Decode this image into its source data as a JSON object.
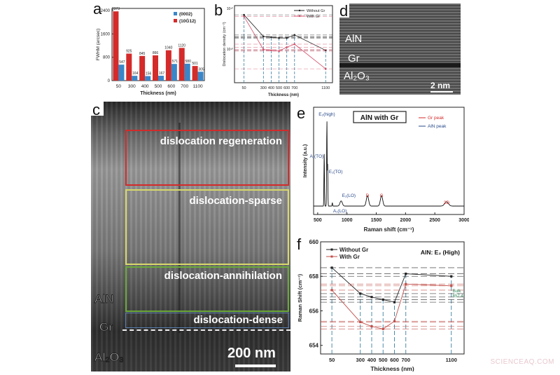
{
  "panels": {
    "a": {
      "label": "a"
    },
    "b": {
      "label": "b"
    },
    "c": {
      "label": "c",
      "regions": [
        {
          "label": "dislocation regeneration",
          "color": "#d42a2a"
        },
        {
          "label": "dislocation-sparse",
          "color": "#d8d86a"
        },
        {
          "label": "dislocation-annihilation",
          "color": "#6aa83a"
        },
        {
          "label": "dislocation-dense",
          "color": "#5a7fb0"
        }
      ],
      "layer_labels": {
        "top": "AlN",
        "middle": "Gr",
        "bottom": "Al₂O₃"
      },
      "scale_bar": "200 nm"
    },
    "d": {
      "label": "d",
      "layer_labels": {
        "top": "AlN",
        "middle": "Gr",
        "bottom": "Al₂O₃"
      },
      "scale_bar": "2 nm"
    },
    "e": {
      "label": "e"
    },
    "f": {
      "label": "f"
    }
  },
  "watermark": "SCIENCEAQ.COM",
  "chart_data": [
    {
      "panel": "a",
      "type": "bar",
      "title": "",
      "xlabel": "Thickness (nm)",
      "ylabel": "FWHM (arcsec)",
      "ylim": [
        0,
        2400
      ],
      "yticks": [
        0,
        800,
        1600,
        2400
      ],
      "categories": [
        "50",
        "300",
        "400",
        "500",
        "600",
        "700",
        "1100"
      ],
      "series": [
        {
          "name": "(0002)",
          "color": "#3a86c8",
          "values": [
            547,
            164,
            156,
            167,
            571,
            580,
            305
          ]
        },
        {
          "name": "(10Ġ12)",
          "color": "#d42a2a",
          "values": [
            2373,
            925,
            845,
            866,
            1040,
            1120,
            501
          ]
        }
      ],
      "legend_position": "upper right"
    },
    {
      "panel": "b",
      "type": "line",
      "xlabel": "Thickness (nm)",
      "ylabel": "Dislocation density (cm⁻²)",
      "yscale": "log",
      "yticks": [
        "10¹⁰",
        "10¹⁰"
      ],
      "x": [
        50,
        300,
        400,
        500,
        600,
        700,
        1100
      ],
      "xtick_labels": [
        "50",
        "300",
        "400",
        "500",
        "600",
        "700",
        "1100"
      ],
      "series": [
        {
          "name": "Without Gr",
          "color": "#222222",
          "values_rel": [
            0.88,
            0.6,
            0.59,
            0.58,
            0.58,
            0.62,
            0.42
          ]
        },
        {
          "name": "With Gr",
          "color": "#d0506a",
          "values_rel": [
            0.86,
            0.43,
            0.42,
            0.41,
            0.46,
            0.5,
            0.18
          ]
        }
      ],
      "legend_position": "upper right"
    },
    {
      "panel": "e",
      "type": "line",
      "title": "AlN with Gr",
      "xlabel": "Raman shift (cm⁻¹)",
      "ylabel": "Intensity (a.u.)",
      "xlim": [
        430,
        3000
      ],
      "xticks": [
        500,
        1000,
        1500,
        2000,
        2500,
        3000
      ],
      "legend": [
        {
          "name": "Gr peak",
          "color": "#d42a2a"
        },
        {
          "name": "AlN peak",
          "color": "#2a4a8a"
        }
      ],
      "annotations": [
        {
          "text": "E₂(high)",
          "x": 657,
          "color": "#2a4a8a"
        },
        {
          "text": "A₁(TO)",
          "x": 611,
          "color": "#2a4a8a"
        },
        {
          "text": "E₁(TO)",
          "x": 670,
          "color": "#2a4a8a"
        },
        {
          "text": "A₁(LO)",
          "x": 890,
          "color": "#2a4a8a"
        },
        {
          "text": "E₁(LO)",
          "x": 912,
          "color": "#2a4a8a"
        },
        {
          "text": "D",
          "x": 1350,
          "color": "#d42a2a"
        },
        {
          "text": "G",
          "x": 1590,
          "color": "#d42a2a"
        },
        {
          "text": "2D",
          "x": 2700,
          "color": "#d42a2a"
        }
      ],
      "peaks": [
        {
          "x": 611,
          "rel_height": 0.62
        },
        {
          "x": 657,
          "rel_height": 1.0
        },
        {
          "x": 670,
          "rel_height": 0.48
        },
        {
          "x": 750,
          "rel_height": 0.04
        },
        {
          "x": 900,
          "rel_height": 0.06
        },
        {
          "x": 1350,
          "rel_height": 0.12
        },
        {
          "x": 1590,
          "rel_height": 0.12
        },
        {
          "x": 2700,
          "rel_height": 0.05
        }
      ]
    },
    {
      "panel": "f",
      "type": "line",
      "title": "AlN: E₂ (High)",
      "xlabel": "Thickness (nm)",
      "ylabel": "Raman Shift (cm⁻¹)",
      "ylim": [
        653.5,
        660
      ],
      "yticks": [
        654,
        656,
        658,
        660
      ],
      "x": [
        50,
        300,
        400,
        500,
        600,
        700,
        1100
      ],
      "xtick_labels": [
        "50",
        "300",
        "400",
        "500",
        "600",
        "700",
        "1100"
      ],
      "series": [
        {
          "name": "Without Gr",
          "color": "#222222",
          "values": [
            658.5,
            657.0,
            656.8,
            656.65,
            656.5,
            658.15,
            658.0
          ]
        },
        {
          "name": "With Gr",
          "color": "#c0504a",
          "values": [
            657.2,
            655.35,
            655.1,
            654.95,
            655.4,
            657.55,
            657.45
          ]
        }
      ],
      "annotations": [
        {
          "text": "Bulk 657.4",
          "color": "#2a8a5a"
        }
      ],
      "legend_position": "upper left"
    }
  ]
}
